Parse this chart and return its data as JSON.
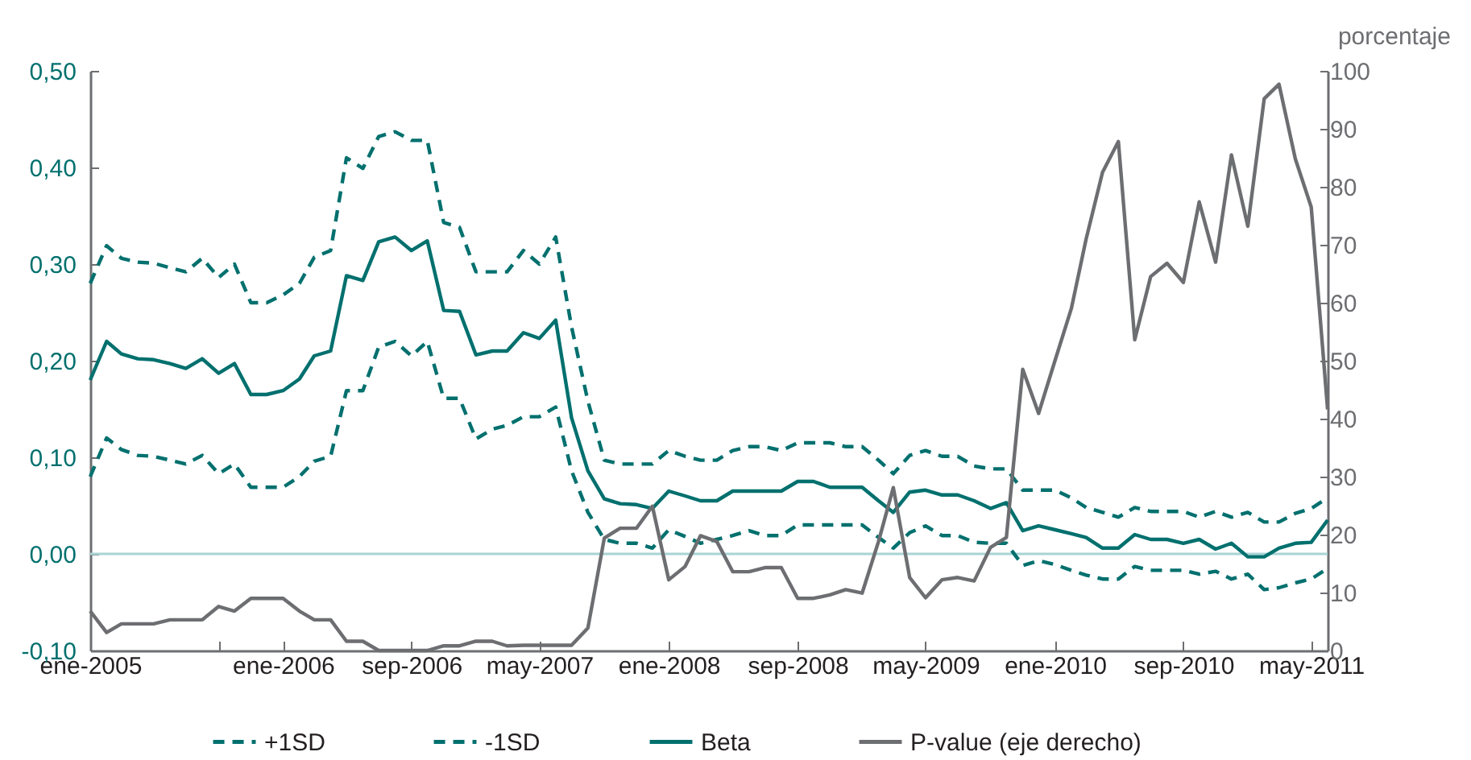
{
  "chart_data": {
    "type": "line",
    "y2label": "porcentaje",
    "legend": "bottom",
    "x": [
      "2005-01",
      "2005-02",
      "2005-03",
      "2005-04",
      "2005-05",
      "2005-06",
      "2005-07",
      "2005-08",
      "2005-09",
      "2005-10",
      "2005-11",
      "2005-12",
      "2006-01",
      "2006-02",
      "2006-03",
      "2006-04",
      "2006-05",
      "2006-06",
      "2006-07",
      "2006-08",
      "2006-09",
      "2006-10",
      "2006-11",
      "2006-12",
      "2007-01",
      "2007-02",
      "2007-03",
      "2007-04",
      "2007-05",
      "2007-06",
      "2007-07",
      "2007-08",
      "2007-09",
      "2007-10",
      "2007-11",
      "2007-12",
      "2008-01",
      "2008-02",
      "2008-03",
      "2008-04",
      "2008-05",
      "2008-06",
      "2008-07",
      "2008-08",
      "2008-09",
      "2008-10",
      "2008-11",
      "2008-12",
      "2009-01",
      "2009-02",
      "2009-03",
      "2009-04",
      "2009-05",
      "2009-06",
      "2009-07",
      "2009-08",
      "2009-09",
      "2009-10",
      "2009-11",
      "2009-12",
      "2010-01",
      "2010-02",
      "2010-03",
      "2010-04",
      "2010-05",
      "2010-06",
      "2010-07",
      "2010-08",
      "2010-09",
      "2010-10",
      "2010-11",
      "2010-12",
      "2011-01",
      "2011-02",
      "2011-03",
      "2011-04",
      "2011-05",
      "2011-06"
    ],
    "xlim": [
      "2005-01",
      "2011-06"
    ],
    "xticks": [
      {
        "value": "2005-01",
        "label": "ene-2005"
      },
      {
        "value": "2005-09",
        "label": null
      },
      {
        "value": "2006-01",
        "label": "ene-2006"
      },
      {
        "value": "2006-09",
        "label": "sep-2006"
      },
      {
        "value": "2007-05",
        "label": "may-2007"
      },
      {
        "value": "2008-01",
        "label": "ene-2008"
      },
      {
        "value": "2008-09",
        "label": "sep-2008"
      },
      {
        "value": "2009-05",
        "label": "may-2009"
      },
      {
        "value": "2010-01",
        "label": "ene-2010"
      },
      {
        "value": "2010-09",
        "label": "sep-2010"
      },
      {
        "value": "2011-05",
        "label": "may-2011"
      }
    ],
    "ylim": [
      -0.1,
      0.5
    ],
    "yticks": [
      {
        "value": -0.1,
        "label": "-0,10"
      },
      {
        "value": 0,
        "label": "0,00"
      },
      {
        "value": 0.1,
        "label": "0,10"
      },
      {
        "value": 0.2,
        "label": "0,20"
      },
      {
        "value": 0.3,
        "label": "0,30"
      },
      {
        "value": 0.4,
        "label": "0,40"
      },
      {
        "value": 0.5,
        "label": "0,50"
      }
    ],
    "y2lim": [
      0,
      100
    ],
    "y2ticks": [
      0,
      10,
      20,
      30,
      40,
      50,
      60,
      70,
      80,
      90,
      100
    ],
    "ref_lines": [
      {
        "axis": "y",
        "value": 0,
        "color": "#a8d3d5"
      }
    ],
    "series": [
      {
        "name": "+1SD",
        "color": "#00706e",
        "line_style": "dashed",
        "values": [
          0.28,
          0.319,
          0.306,
          0.302,
          0.301,
          0.296,
          0.292,
          0.306,
          0.286,
          0.3,
          0.26,
          0.26,
          0.268,
          0.28,
          0.307,
          0.314,
          0.41,
          0.399,
          0.432,
          0.437,
          0.428,
          0.428,
          0.343,
          0.338,
          0.292,
          0.292,
          0.292,
          0.314,
          0.3,
          0.328,
          0.235,
          0.158,
          0.097,
          0.093,
          0.093,
          0.093,
          0.107,
          0.101,
          0.097,
          0.097,
          0.107,
          0.111,
          0.111,
          0.107,
          0.115,
          0.115,
          0.115,
          0.111,
          0.111,
          0.097,
          0.083,
          0.102,
          0.107,
          0.101,
          0.101,
          0.091,
          0.088,
          0.088,
          0.066,
          0.066,
          0.066,
          0.058,
          0.048,
          0.043,
          0.038,
          0.048,
          0.044,
          0.044,
          0.044,
          0.038,
          0.044,
          0.038,
          0.043,
          0.033,
          0.033,
          0.042,
          0.047,
          0.058
        ]
      },
      {
        "name": "-1SD",
        "color": "#00706e",
        "line_style": "dashed",
        "values": [
          0.08,
          0.12,
          0.108,
          0.102,
          0.101,
          0.097,
          0.093,
          0.102,
          0.083,
          0.093,
          0.069,
          0.069,
          0.069,
          0.08,
          0.096,
          0.101,
          0.169,
          0.169,
          0.214,
          0.22,
          0.205,
          0.22,
          0.161,
          0.161,
          0.119,
          0.129,
          0.133,
          0.142,
          0.142,
          0.152,
          0.086,
          0.043,
          0.015,
          0.011,
          0.011,
          0.006,
          0.025,
          0.018,
          0.011,
          0.015,
          0.019,
          0.024,
          0.019,
          0.019,
          0.03,
          0.03,
          0.03,
          0.03,
          0.03,
          0.017,
          0.006,
          0.022,
          0.029,
          0.019,
          0.019,
          0.012,
          0.011,
          0.011,
          -0.012,
          -0.007,
          -0.011,
          -0.017,
          -0.022,
          -0.026,
          -0.026,
          -0.013,
          -0.017,
          -0.017,
          -0.017,
          -0.021,
          -0.018,
          -0.026,
          -0.021,
          -0.037,
          -0.035,
          -0.03,
          -0.026,
          -0.015
        ]
      },
      {
        "name": "Beta",
        "color": "#00706e",
        "line_style": "solid",
        "values": [
          0.18,
          0.22,
          0.207,
          0.202,
          0.201,
          0.197,
          0.192,
          0.202,
          0.187,
          0.197,
          0.165,
          0.165,
          0.169,
          0.181,
          0.205,
          0.21,
          0.288,
          0.283,
          0.323,
          0.328,
          0.314,
          0.324,
          0.252,
          0.251,
          0.206,
          0.21,
          0.21,
          0.229,
          0.223,
          0.242,
          0.141,
          0.086,
          0.057,
          0.052,
          0.051,
          0.047,
          0.065,
          0.06,
          0.055,
          0.055,
          0.065,
          0.065,
          0.065,
          0.065,
          0.075,
          0.075,
          0.069,
          0.069,
          0.069,
          0.055,
          0.043,
          0.064,
          0.066,
          0.061,
          0.061,
          0.055,
          0.047,
          0.053,
          0.024,
          0.029,
          0.025,
          0.021,
          0.017,
          0.006,
          0.006,
          0.02,
          0.015,
          0.015,
          0.011,
          0.015,
          0.005,
          0.011,
          -0.003,
          -0.003,
          0.006,
          0.011,
          0.012,
          0.035
        ]
      },
      {
        "name": "P-value (eje derecho)",
        "color": "#6d6e71",
        "line_style": "solid",
        "axis": "y2",
        "values": [
          6.8,
          3.1,
          4.6,
          4.6,
          4.6,
          5.3,
          5.3,
          5.3,
          7.6,
          6.8,
          9,
          9,
          9,
          6.8,
          5.3,
          5.3,
          1.6,
          1.6,
          0,
          0,
          0,
          0,
          0.8,
          0.8,
          1.6,
          1.6,
          0.8,
          0.9,
          0.9,
          0.9,
          0.9,
          3.9,
          19.4,
          21.1,
          21.1,
          24.9,
          12.2,
          14.5,
          19.8,
          18.8,
          13.6,
          13.6,
          14.3,
          14.3,
          9,
          9,
          9.6,
          10.5,
          9.9,
          18.8,
          28.1,
          12.6,
          9.1,
          12.2,
          12.6,
          12,
          17.8,
          19.5,
          48.5,
          40.9,
          50,
          59,
          71,
          82.5,
          87.8,
          53.6,
          64.5,
          66.8,
          63.5,
          77.4,
          67,
          85.5,
          73.2,
          95.2,
          97.7,
          84.8,
          76.5,
          41.6
        ]
      }
    ]
  }
}
